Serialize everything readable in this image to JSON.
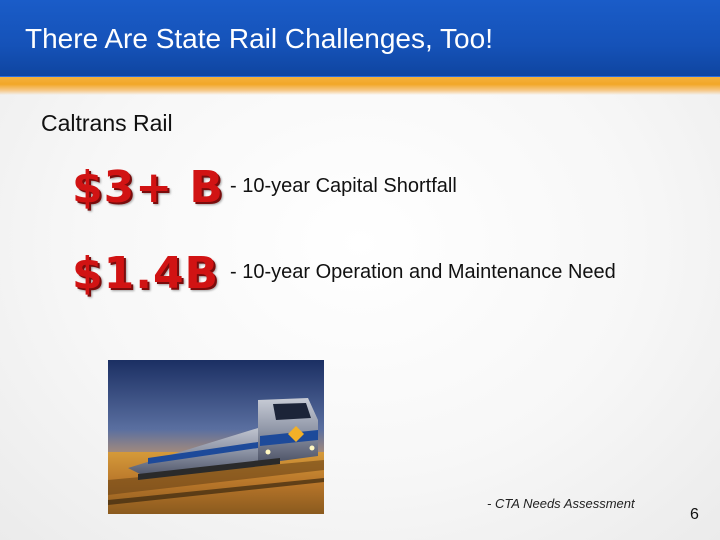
{
  "slide": {
    "title": "There Are State Rail Challenges, Too!",
    "subtitle": "Caltrans Rail",
    "items": [
      {
        "amount": "$3+ B",
        "description": "- 10-year Capital Shortfall"
      },
      {
        "amount": "$1.4B",
        "description": "- 10-year Operation and Maintenance Need"
      }
    ],
    "source": "- CTA Needs Assessment",
    "page_number": "6"
  },
  "colors": {
    "header_blue": "#1552b8",
    "accent_orange": "#f2a728",
    "amount_red": "#d11313"
  }
}
